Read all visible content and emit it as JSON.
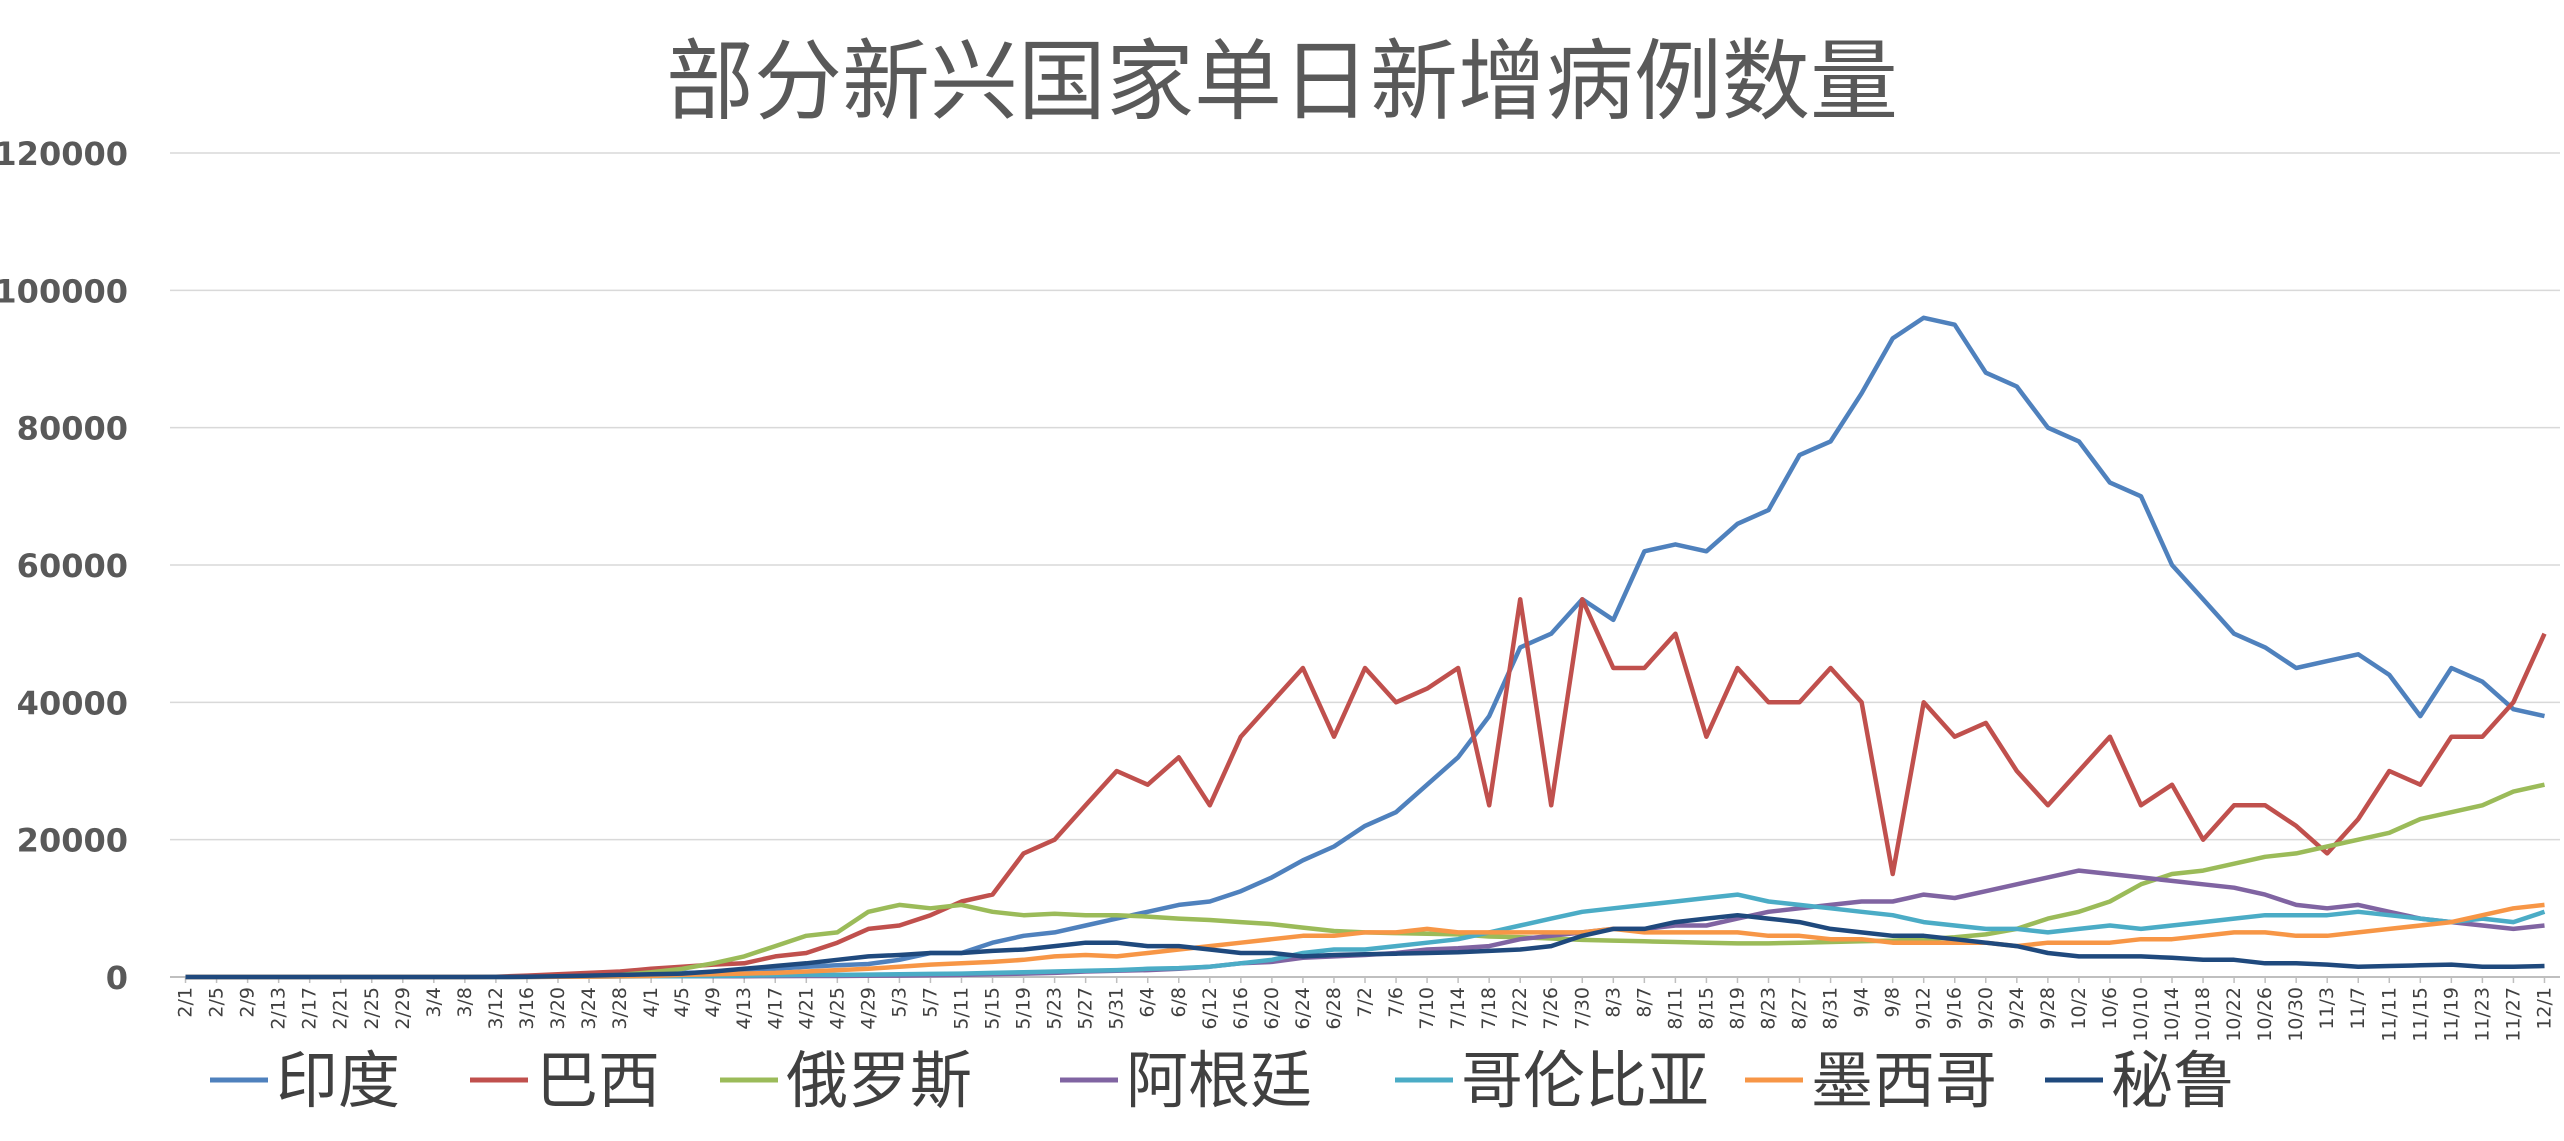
{
  "chart_data": {
    "type": "line",
    "title": "部分新兴国家单日新增病例数量",
    "ylim": [
      0,
      120000
    ],
    "y_ticks": [
      "0",
      "20000",
      "40000",
      "60000",
      "80000",
      "100000",
      "120000"
    ],
    "grid": true,
    "legend_position": "bottom",
    "x_tick_labels": [
      "2/1",
      "2/5",
      "2/9",
      "2/13",
      "2/17",
      "2/21",
      "2/25",
      "2/29",
      "3/4",
      "3/8",
      "3/12",
      "3/16",
      "3/20",
      "3/24",
      "3/28",
      "4/1",
      "4/5",
      "4/9",
      "4/13",
      "4/17",
      "4/21",
      "4/25",
      "4/29",
      "5/3",
      "5/7",
      "5/11",
      "5/15",
      "5/19",
      "5/23",
      "5/27",
      "5/31",
      "6/4",
      "6/8",
      "6/12",
      "6/16",
      "6/20",
      "6/24",
      "6/28",
      "7/2",
      "7/6",
      "7/10",
      "7/14",
      "7/18",
      "7/22",
      "7/26",
      "7/30",
      "8/3",
      "8/7",
      "8/11",
      "8/15",
      "8/19",
      "8/23",
      "8/27",
      "8/31",
      "9/4",
      "9/8",
      "9/12",
      "9/16",
      "9/20",
      "9/24",
      "9/28",
      "10/2",
      "10/6",
      "10/10",
      "10/14",
      "10/18",
      "10/22",
      "10/26",
      "10/30",
      "11/3",
      "11/7",
      "11/11",
      "11/15",
      "11/19",
      "11/23",
      "11/27",
      "12/1"
    ],
    "x_note": "daily values sampled every 4 days, aligned to x_tick_labels",
    "series": [
      {
        "name": "印度",
        "color": "#4f81bd",
        "values": [
          0,
          0,
          0,
          0,
          0,
          0,
          0,
          0,
          0,
          10,
          20,
          30,
          60,
          100,
          150,
          300,
          600,
          700,
          900,
          1200,
          1500,
          1700,
          1900,
          2500,
          3500,
          3500,
          5000,
          6000,
          6500,
          7500,
          8500,
          9500,
          10500,
          11000,
          12500,
          14500,
          17000,
          19000,
          22000,
          24000,
          28000,
          32000,
          38000,
          48000,
          50000,
          55000,
          52000,
          62000,
          63000,
          62000,
          66000,
          68000,
          76000,
          78000,
          85000,
          93000,
          96000,
          95000,
          88000,
          86000,
          80000,
          78000,
          72000,
          70000,
          60000,
          55000,
          50000,
          48000,
          45000,
          46000,
          47000,
          44000,
          38000,
          45000,
          43000,
          39000,
          38000
        ]
      },
      {
        "name": "巴西",
        "color": "#c0504d",
        "values": [
          0,
          0,
          0,
          0,
          0,
          0,
          0,
          0,
          0,
          10,
          50,
          200,
          400,
          600,
          800,
          1200,
          1500,
          1800,
          2000,
          3000,
          3500,
          5000,
          7000,
          7500,
          9000,
          11000,
          12000,
          18000,
          20000,
          25000,
          30000,
          28000,
          32000,
          25000,
          35000,
          40000,
          45000,
          35000,
          45000,
          40000,
          42000,
          45000,
          25000,
          55000,
          25000,
          55000,
          45000,
          45000,
          50000,
          35000,
          45000,
          40000,
          40000,
          45000,
          40000,
          15000,
          40000,
          35000,
          37000,
          30000,
          25000,
          30000,
          35000,
          25000,
          28000,
          20000,
          25000,
          25000,
          22000,
          18000,
          23000,
          30000,
          28000,
          35000,
          35000,
          40000,
          50000
        ]
      },
      {
        "name": "俄罗斯",
        "color": "#9bbb59",
        "values": [
          0,
          0,
          0,
          0,
          0,
          0,
          0,
          0,
          0,
          5,
          10,
          20,
          60,
          150,
          300,
          700,
          1200,
          2000,
          3000,
          4500,
          6000,
          6500,
          9500,
          10500,
          10000,
          10500,
          9500,
          9000,
          9200,
          9000,
          9000,
          8800,
          8500,
          8300,
          8000,
          7700,
          7200,
          6700,
          6500,
          6400,
          6300,
          6200,
          5900,
          5800,
          5600,
          5400,
          5300,
          5200,
          5100,
          5000,
          4900,
          4900,
          5000,
          5100,
          5200,
          5300,
          5500,
          5800,
          6200,
          7000,
          8500,
          9500,
          11000,
          13500,
          15000,
          15500,
          16500,
          17500,
          18000,
          19000,
          20000,
          21000,
          23000,
          24000,
          25000,
          27000,
          28000
        ]
      },
      {
        "name": "阿根廷",
        "color": "#8064a2",
        "values": [
          0,
          0,
          0,
          0,
          0,
          0,
          0,
          0,
          0,
          0,
          5,
          20,
          50,
          80,
          100,
          100,
          100,
          100,
          100,
          130,
          150,
          150,
          170,
          200,
          250,
          300,
          400,
          500,
          600,
          800,
          900,
          1000,
          1200,
          1500,
          2000,
          2200,
          2800,
          3000,
          3200,
          3500,
          4000,
          4200,
          4500,
          5500,
          6000,
          6500,
          7000,
          7000,
          7500,
          7500,
          8500,
          9500,
          10000,
          10500,
          11000,
          11000,
          12000,
          11500,
          12500,
          13500,
          14500,
          15500,
          15000,
          14500,
          14000,
          13500,
          13000,
          12000,
          10500,
          10000,
          10500,
          9500,
          8500,
          8000,
          7500,
          7000,
          7500
        ]
      },
      {
        "name": "哥伦比亚",
        "color": "#4bacc6",
        "values": [
          0,
          0,
          0,
          0,
          0,
          0,
          0,
          0,
          0,
          0,
          5,
          20,
          40,
          60,
          80,
          100,
          100,
          150,
          200,
          250,
          300,
          300,
          350,
          400,
          450,
          500,
          600,
          700,
          800,
          900,
          1000,
          1200,
          1300,
          1500,
          2000,
          2500,
          3500,
          4000,
          4000,
          4500,
          5000,
          5500,
          6500,
          7500,
          8500,
          9500,
          10000,
          10500,
          11000,
          11500,
          12000,
          11000,
          10500,
          10000,
          9500,
          9000,
          8000,
          7500,
          7000,
          7000,
          6500,
          7000,
          7500,
          7000,
          7500,
          8000,
          8500,
          9000,
          9000,
          9000,
          9500,
          9000,
          8500,
          8000,
          8500,
          8000,
          9500
        ]
      },
      {
        "name": "墨西哥",
        "color": "#f79646",
        "values": [
          0,
          0,
          0,
          0,
          0,
          0,
          0,
          0,
          0,
          5,
          10,
          20,
          40,
          60,
          100,
          150,
          300,
          400,
          500,
          600,
          800,
          1000,
          1200,
          1500,
          1800,
          2000,
          2200,
          2500,
          3000,
          3200,
          3000,
          3500,
          4000,
          4500,
          5000,
          5500,
          6000,
          6000,
          6500,
          6500,
          7000,
          6500,
          6500,
          6500,
          6500,
          6500,
          7000,
          6500,
          6500,
          6500,
          6500,
          6000,
          6000,
          5500,
          5500,
          5000,
          5000,
          5000,
          5000,
          4500,
          5000,
          5000,
          5000,
          5500,
          5500,
          6000,
          6500,
          6500,
          6000,
          6000,
          6500,
          7000,
          7500,
          8000,
          9000,
          10000,
          10500
        ]
      },
      {
        "name": "秘鲁",
        "color": "#1f497d",
        "values": [
          0,
          0,
          0,
          0,
          0,
          0,
          0,
          0,
          0,
          5,
          20,
          50,
          100,
          200,
          300,
          400,
          500,
          800,
          1200,
          1600,
          2000,
          2500,
          3000,
          3200,
          3500,
          3500,
          3800,
          4000,
          4500,
          5000,
          5000,
          4500,
          4500,
          4000,
          3500,
          3500,
          3000,
          3200,
          3300,
          3400,
          3500,
          3600,
          3800,
          4000,
          4500,
          6000,
          7000,
          7000,
          8000,
          8500,
          9000,
          8500,
          8000,
          7000,
          6500,
          6000,
          6000,
          5500,
          5000,
          4500,
          3500,
          3000,
          3000,
          3000,
          2800,
          2500,
          2500,
          2000,
          2000,
          1800,
          1500,
          1600,
          1700,
          1800,
          1500,
          1500,
          1600
        ]
      }
    ]
  }
}
